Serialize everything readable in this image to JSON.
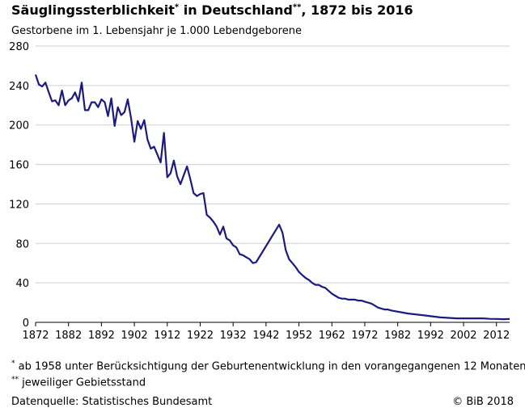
{
  "header": {
    "title_main": "Säuglingssterblichkeit",
    "title_mark1": "*",
    "title_mid": " in Deutschland",
    "title_mark2": "**",
    "title_end": ", 1872 bis 2016",
    "subtitle": "Gestorbene im 1. Lebensjahr je 1.000 Lebendgeborene"
  },
  "footer": {
    "footnote1_mark": "*",
    "footnote1_text": " ab 1958 unter Berücksichtigung der Geburtenentwicklung in den vorangegangenen 12 Monaten",
    "footnote2_mark": "**",
    "footnote2_text": " jeweiliger Gebietsstand",
    "source": "Datenquelle: Statistisches Bundesamt",
    "copyright": "© BiB 2018"
  },
  "chart_data": {
    "type": "line",
    "title": "Säuglingssterblichkeit in Deutschland, 1872 bis 2016",
    "ylabel": "Gestorbene im 1. Lebensjahr je 1.000 Lebendgeborene",
    "xlim": [
      1872,
      2016
    ],
    "ylim": [
      0,
      280
    ],
    "xticks": [
      "1872",
      "1882",
      "1892",
      "1902",
      "1912",
      "1922",
      "1932",
      "1942",
      "1952",
      "1962",
      "1972",
      "1982",
      "1992",
      "2002",
      "2012"
    ],
    "yticks": [
      "0",
      "40",
      "80",
      "120",
      "160",
      "200",
      "240",
      "280"
    ],
    "grid": "horizontal",
    "color": "#1a1a80",
    "series": [
      {
        "x": [
          1872,
          1873,
          1874,
          1875,
          1876,
          1877,
          1878,
          1879,
          1880,
          1881,
          1882,
          1883,
          1884,
          1885,
          1886,
          1887,
          1888,
          1889,
          1890,
          1891,
          1892,
          1893,
          1894,
          1895,
          1896,
          1897,
          1898,
          1899,
          1900,
          1901,
          1902,
          1903,
          1904,
          1905,
          1906,
          1907,
          1908,
          1909,
          1910,
          1911,
          1912,
          1913,
          1914,
          1915,
          1916,
          1917,
          1918,
          1919,
          1920,
          1921,
          1922,
          1923,
          1924,
          1925,
          1926,
          1927,
          1928,
          1929,
          1930,
          1931,
          1932,
          1933,
          1934,
          1935,
          1936,
          1937,
          1938,
          1939,
          1946,
          1947,
          1948,
          1949,
          1950,
          1951,
          1952,
          1953,
          1954,
          1955,
          1956,
          1957,
          1958,
          1959,
          1960,
          1961,
          1962,
          1963,
          1964,
          1965,
          1966,
          1967,
          1968,
          1969,
          1970,
          1971,
          1972,
          1973,
          1974,
          1975,
          1976,
          1977,
          1978,
          1979,
          1980,
          1985,
          1990,
          1995,
          2000,
          2005,
          2008,
          2010,
          2012,
          2014,
          2016
        ],
        "y": [
          251,
          241,
          239,
          243,
          233,
          224,
          225,
          220,
          235,
          220,
          225,
          227,
          233,
          224,
          243,
          215,
          215,
          223,
          223,
          218,
          226,
          223,
          209,
          227,
          199,
          218,
          210,
          213,
          226,
          207,
          183,
          204,
          196,
          205,
          185,
          176,
          178,
          170,
          162,
          192,
          147,
          151,
          164,
          148,
          140,
          149,
          158,
          145,
          131,
          128,
          130,
          131,
          109,
          106,
          102,
          97,
          89,
          97,
          85,
          83,
          78,
          76,
          69,
          68,
          66,
          64,
          60,
          61,
          99,
          91,
          73,
          64,
          60,
          56,
          51,
          48,
          45,
          43,
          40,
          38,
          38,
          36,
          35,
          32,
          29,
          27,
          25,
          24,
          24,
          23,
          23,
          23,
          22,
          22,
          21,
          20,
          19,
          17,
          15,
          14,
          13,
          13,
          12,
          9,
          7,
          5,
          4,
          4,
          4,
          3.5,
          3.4,
          3.2,
          3.4
        ]
      }
    ]
  }
}
